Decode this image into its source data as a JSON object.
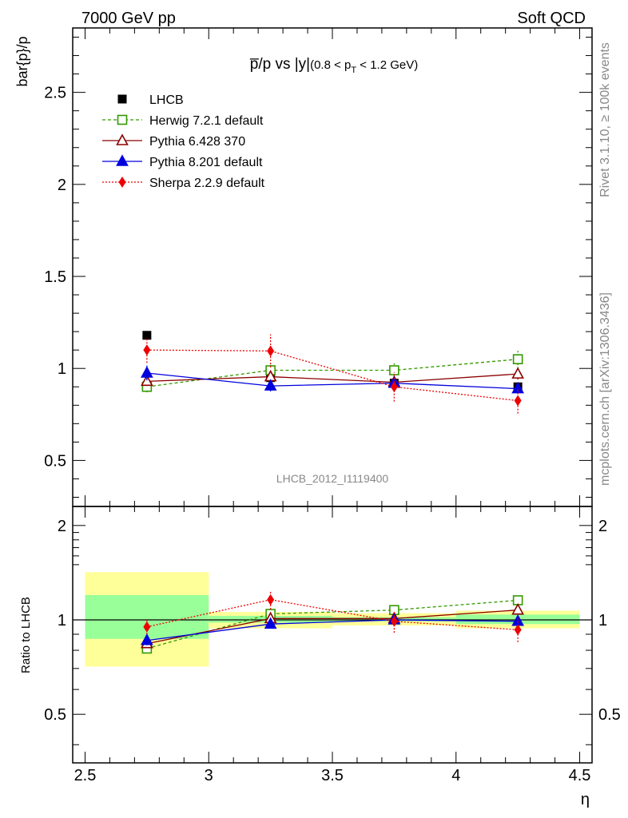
{
  "header": {
    "left": "7000 GeV pp",
    "right": "Soft QCD"
  },
  "side_labels": {
    "rivet": "Rivet 3.1.10, ≥ 100k events",
    "mcplots": "mcplots.cern.ch [arXiv:1306.3436]"
  },
  "colors": {
    "lhcb": "#000000",
    "herwig": "#339900",
    "pythia6": "#8b0000",
    "pythia8": "#0000dd",
    "sherpa": "#ee0000",
    "band_inner": "#99ff99",
    "band_outer": "#ffff99"
  },
  "chart_data": [
    {
      "type": "scatter",
      "title": "p̅/p vs |y|",
      "title_suffix": "(0.8 < p",
      "title_sub": "T",
      "title_end": " < 1.2 GeV)",
      "ylabel": "bar{p}/p",
      "watermark": "LHCB_2012_I1119400",
      "xlim": [
        2.45,
        4.55
      ],
      "ylim": [
        0.25,
        2.85
      ],
      "yticks": [
        0.5,
        1,
        1.5,
        2,
        2.5
      ],
      "ytick_labels": [
        "0.5",
        "1",
        "1.5",
        "2",
        "2.5"
      ],
      "series": [
        {
          "key": "lhcb",
          "name": "LHCB",
          "x": [
            2.75,
            3.25,
            3.75,
            4.25
          ],
          "y": [
            1.18,
            0.95,
            0.92,
            0.9
          ],
          "err": [
            0.01,
            0.01,
            0.01,
            0.01
          ]
        },
        {
          "key": "herwig",
          "name": "Herwig 7.2.1 default",
          "x": [
            2.75,
            3.25,
            3.75,
            4.25
          ],
          "y": [
            0.9,
            0.99,
            0.99,
            1.05
          ],
          "err": [
            0.03,
            0.03,
            0.04,
            0.05
          ]
        },
        {
          "key": "pythia6",
          "name": "Pythia 6.428 370",
          "x": [
            2.75,
            3.25,
            3.75,
            4.25
          ],
          "y": [
            0.93,
            0.955,
            0.925,
            0.97
          ],
          "err": [
            0.02,
            0.02,
            0.02,
            0.03
          ]
        },
        {
          "key": "pythia8",
          "name": "Pythia 8.201 default",
          "x": [
            2.75,
            3.25,
            3.75,
            4.25
          ],
          "y": [
            0.975,
            0.905,
            0.92,
            0.89
          ],
          "err": [
            0.04,
            0.03,
            0.02,
            0.02
          ]
        },
        {
          "key": "sherpa",
          "name": "Sherpa 2.2.9 default",
          "x": [
            2.75,
            3.25,
            3.75,
            4.25
          ],
          "y": [
            1.1,
            1.095,
            0.9,
            0.825
          ],
          "err": [
            0.07,
            0.09,
            0.08,
            0.07
          ]
        }
      ]
    },
    {
      "type": "scatter",
      "ylabel": "Ratio to LHCB",
      "xlabel": "η",
      "xlim": [
        2.45,
        4.55
      ],
      "ylim": [
        0.35,
        2.3
      ],
      "xticks": [
        2.5,
        3,
        3.5,
        4,
        4.5
      ],
      "xtick_labels": [
        "2.5",
        "3",
        "3.5",
        "4",
        "4.5"
      ],
      "yticks": [
        0.5,
        1,
        2
      ],
      "ytick_labels": [
        "0.5",
        "1",
        "2"
      ],
      "bands": [
        {
          "x": [
            2.5,
            3.0
          ],
          "inner": [
            0.87,
            1.2
          ],
          "outer": [
            0.71,
            1.42
          ]
        },
        {
          "x": [
            3.0,
            3.5
          ],
          "inner": [
            0.98,
            1.03
          ],
          "outer": [
            0.94,
            1.06
          ]
        },
        {
          "x": [
            3.5,
            4.0
          ],
          "inner": [
            0.99,
            1.02
          ],
          "outer": [
            0.96,
            1.05
          ]
        },
        {
          "x": [
            4.0,
            4.5
          ],
          "inner": [
            0.97,
            1.04
          ],
          "outer": [
            0.94,
            1.07
          ]
        }
      ],
      "series": [
        {
          "key": "herwig",
          "x": [
            2.75,
            3.25,
            3.75,
            4.25
          ],
          "y": [
            0.81,
            1.045,
            1.075,
            1.155
          ],
          "err": [
            0.02,
            0.03,
            0.03,
            0.03
          ]
        },
        {
          "key": "pythia6",
          "x": [
            2.75,
            3.25,
            3.75,
            4.25
          ],
          "y": [
            0.84,
            1.01,
            1.01,
            1.075
          ],
          "err": [
            0.02,
            0.02,
            0.02,
            0.03
          ]
        },
        {
          "key": "pythia8",
          "x": [
            2.75,
            3.25,
            3.75,
            4.25
          ],
          "y": [
            0.86,
            0.97,
            1.0,
            0.99
          ],
          "err": [
            0.03,
            0.03,
            0.02,
            0.02
          ]
        },
        {
          "key": "sherpa",
          "x": [
            2.75,
            3.25,
            3.75,
            4.25
          ],
          "y": [
            0.95,
            1.16,
            0.99,
            0.93
          ],
          "err": [
            0.05,
            0.08,
            0.08,
            0.08
          ]
        }
      ]
    }
  ]
}
